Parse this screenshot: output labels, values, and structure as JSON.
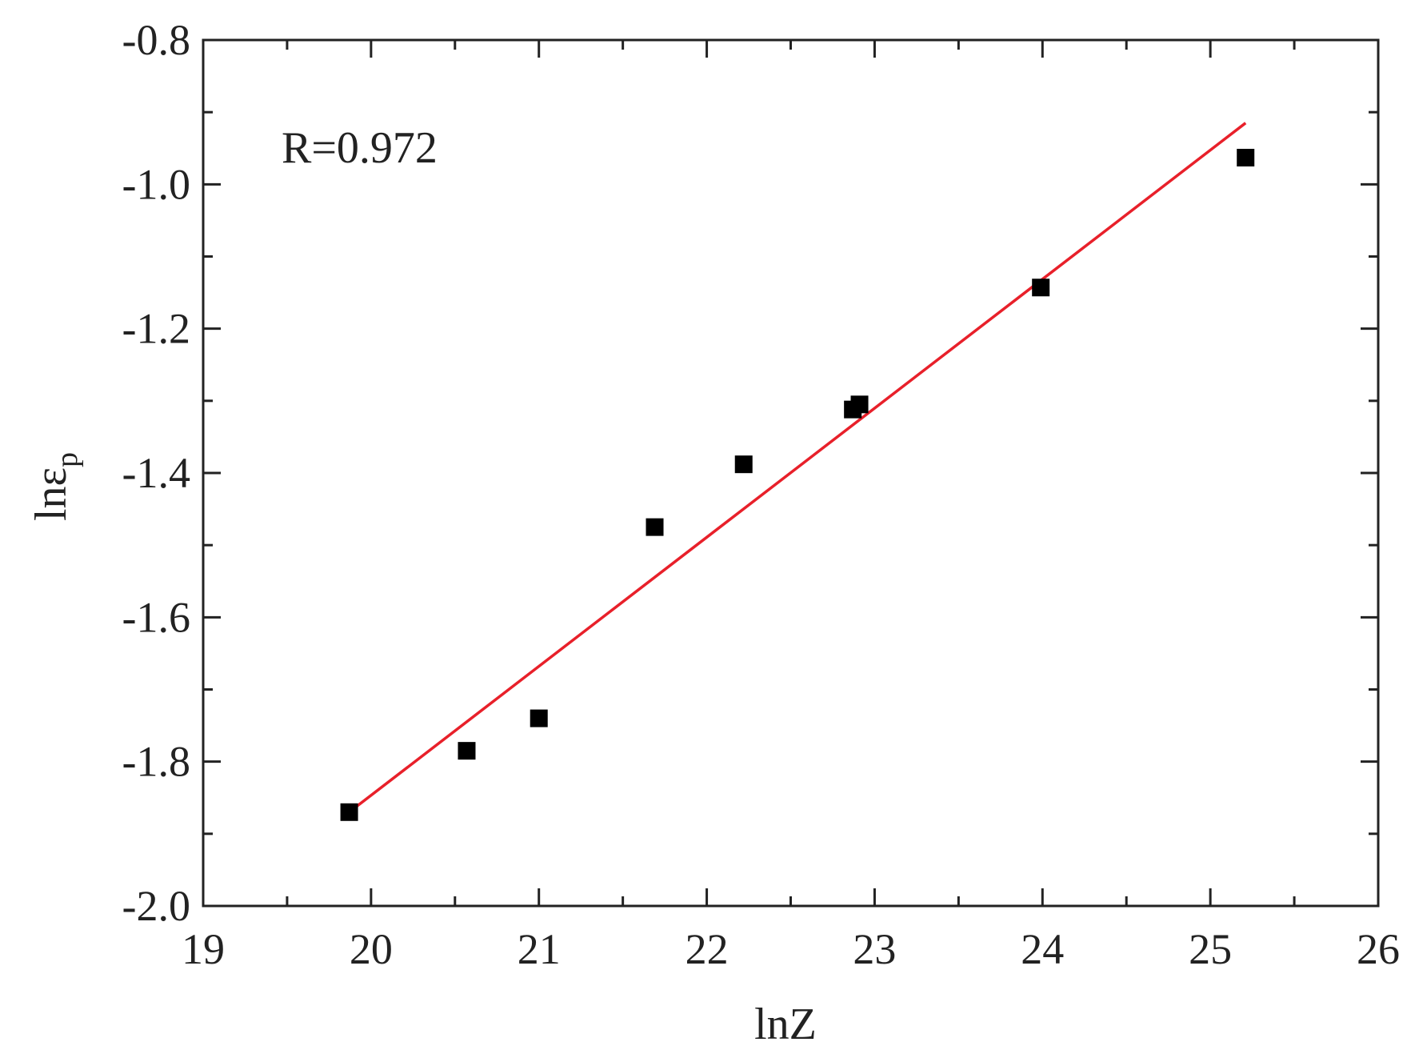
{
  "chart_data": {
    "type": "scatter",
    "xlabel": "lnZ",
    "ylabel": {
      "main": "lnε",
      "sub": "p"
    },
    "annotation": "R=0.972",
    "xlim": [
      19,
      26
    ],
    "ylim": [
      -2.0,
      -0.8
    ],
    "x_major_ticks": [
      19,
      20,
      21,
      22,
      23,
      24,
      25,
      26
    ],
    "x_tick_labels": [
      "19",
      "20",
      "21",
      "22",
      "23",
      "24",
      "25",
      "26"
    ],
    "x_minor_ticks": [
      19.5,
      20.5,
      21.5,
      22.5,
      23.5,
      24.5,
      25.5
    ],
    "y_major_ticks": [
      -2.0,
      -1.8,
      -1.6,
      -1.4,
      -1.2,
      -1.0,
      -0.8
    ],
    "y_tick_labels": [
      "-2.0",
      "-1.8",
      "-1.6",
      "-1.4",
      "-1.2",
      "-1.0",
      "-0.8"
    ],
    "y_minor_ticks": [
      -1.9,
      -1.7,
      -1.5,
      -1.3,
      -1.1,
      -0.9
    ],
    "grid": false,
    "series": [
      {
        "kind": "points",
        "marker": "square",
        "color": "#000000",
        "x": [
          19.87,
          20.57,
          21.0,
          21.69,
          22.22,
          22.87,
          22.91,
          23.99,
          25.21
        ],
        "y": [
          -1.87,
          -1.785,
          -1.74,
          -1.475,
          -1.388,
          -1.312,
          -1.305,
          -1.143,
          -0.963
        ]
      },
      {
        "kind": "fit_line",
        "color": "#e8202a",
        "x": [
          19.87,
          25.21
        ],
        "y": [
          -1.87,
          -0.915
        ]
      }
    ]
  }
}
